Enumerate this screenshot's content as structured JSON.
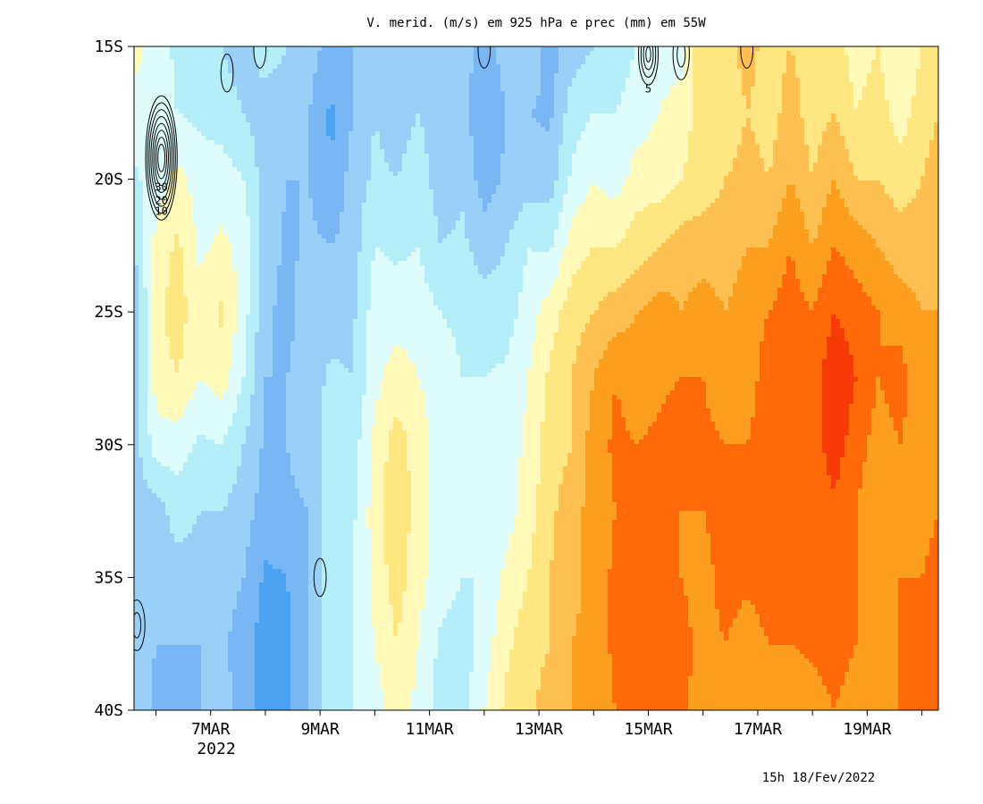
{
  "chart_data": {
    "type": "heatmap",
    "title": "V. merid. (m/s) em 925 hPa e prec (mm) em 55W",
    "xlabel": "",
    "ylabel": "",
    "x_tick_labels": [
      "7MAR",
      "9MAR",
      "11MAR",
      "13MAR",
      "15MAR",
      "17MAR",
      "19MAR"
    ],
    "x_tick_values": [
      7,
      9,
      11,
      13,
      15,
      17,
      19
    ],
    "x_sublabel": "2022",
    "xlim": [
      5.6,
      20.3
    ],
    "y_tick_labels": [
      "15S",
      "20S",
      "25S",
      "30S",
      "35S",
      "40S"
    ],
    "y_tick_values": [
      15,
      20,
      25,
      30,
      35,
      40
    ],
    "ylim": [
      15,
      40
    ],
    "timestamp": "15h 18/Fev/2022",
    "contour_labels": [
      {
        "text": "30",
        "day": 6.1,
        "lat": 20.3
      },
      {
        "text": "20",
        "day": 6.1,
        "lat": 20.8
      },
      {
        "text": "10",
        "day": 6.1,
        "lat": 21.2
      },
      {
        "text": "5",
        "day": 15.0,
        "lat": 16.6
      }
    ],
    "shading_colors": [
      "#1e6ed6",
      "#4ba2f0",
      "#78b7f4",
      "#9ad0f8",
      "#b4eef8",
      "#dffcfc",
      "#fffaba",
      "#fee680",
      "#fec050",
      "#fd9f1e",
      "#fe6a0a",
      "#f83a08",
      "#da1a04"
    ],
    "shading_levels": [
      -5,
      -4,
      -3,
      -2,
      -1,
      0,
      1,
      2,
      3,
      4,
      5,
      6
    ],
    "days": [
      5.6,
      6.0,
      6.4,
      6.8,
      7.2,
      7.6,
      8.0,
      8.4,
      8.8,
      9.2,
      9.6,
      10.0,
      10.4,
      10.8,
      11.2,
      11.6,
      12.0,
      12.4,
      12.8,
      13.2,
      13.6,
      14.0,
      14.4,
      14.8,
      15.2,
      15.6,
      16.0,
      16.4,
      16.8,
      17.2,
      17.6,
      18.0,
      18.4,
      18.8,
      19.2,
      19.6,
      20.0,
      20.3
    ],
    "lats": [
      15,
      17.5,
      20,
      22.5,
      25,
      27.5,
      30,
      32.5,
      35,
      37.5,
      40
    ],
    "values": [
      [
        0.5,
        -0.5,
        -1.2,
        -2.0,
        -3.0,
        -3.0,
        -2.5,
        -2.5,
        -2.5,
        -2.5,
        -2.5
      ],
      [
        -0.5,
        -0.8,
        -0.5,
        0.3,
        0.7,
        0.5,
        -0.5,
        -2.5,
        -2.5,
        -3.0,
        -3.2
      ],
      [
        -1.2,
        -1.0,
        0.3,
        1.2,
        1.5,
        1.0,
        -0.5,
        -1.5,
        -2.5,
        -3.0,
        -3.5
      ],
      [
        -1.5,
        -1.2,
        -0.5,
        -0.2,
        0.3,
        0.0,
        -1.2,
        -2.0,
        -2.5,
        -3.0,
        -3.0
      ],
      [
        -2.0,
        -1.5,
        -0.5,
        0.2,
        1.2,
        0.5,
        -1.0,
        -2.0,
        -2.5,
        -2.8,
        -2.5
      ],
      [
        -2.5,
        -2.0,
        -1.0,
        -0.3,
        -0.5,
        -1.0,
        -2.0,
        -2.5,
        -3.0,
        -3.5,
        -3.5
      ],
      [
        -1.5,
        -2.5,
        -2.5,
        -2.5,
        -2.8,
        -3.0,
        -3.2,
        -3.5,
        -4.2,
        -4.5,
        -4.5
      ],
      [
        -2.0,
        -2.5,
        -3.0,
        -3.2,
        -3.3,
        -3.0,
        -3.0,
        -3.2,
        -4.0,
        -4.2,
        -4.2
      ],
      [
        -2.5,
        -3.0,
        -3.0,
        -2.8,
        -2.5,
        -2.5,
        -2.5,
        -3.0,
        -3.0,
        -3.0,
        -3.0
      ],
      [
        -3.5,
        -4.2,
        -4.0,
        -3.0,
        -2.5,
        -1.8,
        -1.5,
        -1.5,
        -1.5,
        -1.5,
        -1.5
      ],
      [
        -3.0,
        -3.0,
        -2.5,
        -2.5,
        -2.2,
        -2.0,
        -1.5,
        -1.2,
        -1.0,
        -1.0,
        -1.0
      ],
      [
        -2.5,
        -2.0,
        -1.8,
        -1.0,
        -0.5,
        -0.3,
        0.3,
        0.5,
        0.3,
        0.0,
        -0.5
      ],
      [
        -3.0,
        -2.5,
        -2.0,
        -1.2,
        -0.5,
        0.5,
        1.5,
        1.8,
        1.5,
        1.0,
        0.5
      ],
      [
        -2.5,
        -2.0,
        -1.5,
        -1.0,
        -0.5,
        0.0,
        0.5,
        0.5,
        0.3,
        0.0,
        -0.3
      ],
      [
        -3.0,
        -2.5,
        -2.5,
        -2.0,
        -1.0,
        -0.5,
        -0.5,
        -0.5,
        -0.5,
        -1.2,
        -1.5
      ],
      [
        -2.5,
        -2.5,
        -2.2,
        -1.8,
        -1.2,
        -1.0,
        -0.5,
        -0.8,
        -1.0,
        -1.5,
        -1.5
      ],
      [
        -3.5,
        -4.0,
        -3.5,
        -2.5,
        -1.5,
        -1.0,
        -1.0,
        -1.0,
        -1.0,
        -0.5,
        0.0
      ],
      [
        -2.5,
        -3.0,
        -2.8,
        -2.0,
        -1.5,
        -0.8,
        -0.5,
        -0.5,
        0.3,
        0.8,
        1.2
      ],
      [
        -2.0,
        -3.0,
        -2.5,
        -1.0,
        -0.5,
        0.0,
        0.2,
        0.5,
        1.0,
        1.5,
        1.8
      ],
      [
        -3.5,
        -3.2,
        -2.5,
        -1.2,
        0.5,
        1.2,
        1.5,
        1.8,
        2.0,
        2.0,
        2.5
      ],
      [
        -2.5,
        -1.5,
        -0.8,
        0.5,
        1.5,
        2.0,
        2.0,
        2.5,
        2.5,
        3.0,
        3.0
      ],
      [
        -2.0,
        -1.0,
        0.0,
        1.0,
        2.0,
        3.0,
        3.5,
        3.5,
        3.5,
        3.5,
        3.5
      ],
      [
        -1.5,
        -1.0,
        -0.5,
        1.0,
        2.5,
        4.0,
        4.2,
        4.0,
        4.2,
        4.2,
        4.0
      ],
      [
        -1.0,
        -0.5,
        0.5,
        1.5,
        3.0,
        3.5,
        4.0,
        4.5,
        4.5,
        4.2,
        4.0
      ],
      [
        -0.5,
        0.0,
        0.5,
        2.0,
        3.5,
        3.8,
        4.2,
        4.5,
        4.5,
        4.5,
        4.8
      ],
      [
        -0.5,
        0.5,
        1.0,
        2.5,
        3.0,
        4.0,
        4.5,
        4.0,
        4.0,
        4.5,
        4.2
      ],
      [
        2.0,
        1.5,
        1.5,
        2.5,
        3.5,
        4.0,
        4.2,
        4.0,
        3.5,
        3.5,
        3.5
      ],
      [
        1.5,
        1.0,
        2.0,
        2.5,
        3.0,
        3.5,
        4.0,
        4.5,
        4.5,
        4.0,
        4.0
      ],
      [
        2.5,
        2.0,
        2.5,
        3.0,
        3.5,
        3.5,
        4.0,
        4.5,
        4.2,
        3.5,
        3.2
      ],
      [
        1.5,
        1.5,
        2.0,
        3.0,
        4.0,
        4.5,
        4.5,
        4.5,
        4.5,
        4.0,
        3.5
      ],
      [
        2.0,
        2.5,
        3.0,
        4.0,
        4.5,
        5.0,
        5.0,
        4.5,
        4.0,
        4.0,
        3.5
      ],
      [
        1.5,
        1.5,
        2.0,
        3.0,
        4.0,
        4.5,
        4.5,
        4.5,
        4.5,
        4.2,
        3.5
      ],
      [
        1.5,
        2.0,
        3.0,
        4.0,
        5.0,
        5.8,
        5.5,
        4.8,
        4.5,
        4.5,
        4.0
      ],
      [
        0.5,
        1.0,
        2.0,
        3.5,
        4.5,
        5.0,
        4.5,
        4.0,
        4.0,
        4.0,
        3.5
      ],
      [
        1.0,
        1.5,
        2.0,
        3.0,
        4.0,
        4.0,
        3.5,
        3.0,
        3.0,
        3.5,
        4.0
      ],
      [
        0.0,
        0.5,
        1.5,
        2.5,
        3.5,
        4.5,
        4.0,
        4.0,
        4.0,
        4.0,
        4.0
      ],
      [
        1.0,
        1.5,
        2.0,
        2.5,
        3.0,
        3.0,
        3.5,
        3.5,
        4.0,
        4.0,
        4.5
      ],
      [
        2.0,
        2.0,
        2.5,
        3.0,
        3.0,
        3.5,
        3.5,
        4.0,
        4.5,
        4.5,
        5.0
      ]
    ],
    "precip_contours": [
      {
        "day": 6.1,
        "lat": 19.2,
        "max_mm": 45,
        "levels": [
          5,
          10,
          15,
          20,
          25,
          30,
          35,
          40
        ]
      },
      {
        "day": 7.3,
        "lat": 16.0,
        "max_mm": 5,
        "levels": [
          5
        ]
      },
      {
        "day": 15.0,
        "lat": 15.3,
        "max_mm": 20,
        "levels": [
          5,
          10,
          15,
          20
        ]
      },
      {
        "day": 15.6,
        "lat": 15.3,
        "max_mm": 10,
        "levels": [
          5,
          10
        ]
      },
      {
        "day": 9.0,
        "lat": 35.0,
        "max_mm": 5,
        "levels": [
          5
        ]
      },
      {
        "day": 5.65,
        "lat": 36.8,
        "max_mm": 10,
        "levels": [
          5,
          10
        ]
      },
      {
        "day": 7.9,
        "lat": 15.1,
        "max_mm": 5,
        "levels": [
          5
        ]
      },
      {
        "day": 12.0,
        "lat": 15.1,
        "max_mm": 5,
        "levels": [
          5
        ]
      },
      {
        "day": 16.8,
        "lat": 15.1,
        "max_mm": 5,
        "levels": [
          5
        ]
      }
    ]
  }
}
